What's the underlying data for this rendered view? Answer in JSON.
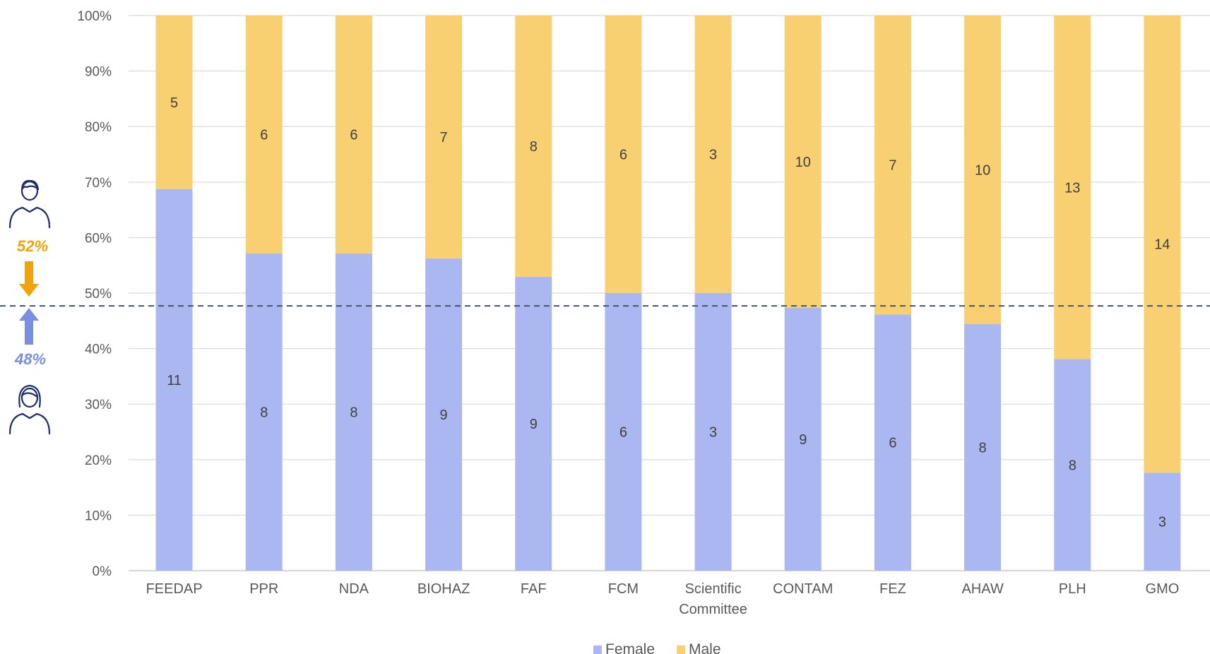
{
  "chart_data": {
    "type": "bar",
    "stacked": "percent",
    "categories": [
      "FEEDAP",
      "PPR",
      "NDA",
      "BIOHAZ",
      "FAF",
      "FCM",
      "Scientific Committee",
      "CONTAM",
      "FEZ",
      "AHAW",
      "PLH",
      "GMO"
    ],
    "category_lines": [
      [
        "FEEDAP"
      ],
      [
        "PPR"
      ],
      [
        "NDA"
      ],
      [
        "BIOHAZ"
      ],
      [
        "FAF"
      ],
      [
        "FCM"
      ],
      [
        "Scientific",
        "Committee"
      ],
      [
        "CONTAM"
      ],
      [
        "FEZ"
      ],
      [
        "AHAW"
      ],
      [
        "PLH"
      ],
      [
        "GMO"
      ]
    ],
    "series": [
      {
        "name": "Female",
        "values": [
          11,
          8,
          8,
          9,
          9,
          6,
          3,
          9,
          6,
          8,
          8,
          3
        ],
        "color": "#aab7f0"
      },
      {
        "name": "Male",
        "values": [
          5,
          6,
          6,
          7,
          8,
          6,
          3,
          10,
          7,
          10,
          13,
          14
        ],
        "color": "#f9d071"
      }
    ],
    "y_ticks": [
      "0%",
      "10%",
      "20%",
      "30%",
      "40%",
      "50%",
      "60%",
      "70%",
      "80%",
      "90%",
      "100%"
    ],
    "ylim": [
      0,
      100
    ],
    "reference_line": {
      "value": 47.7,
      "style": "dashed",
      "color": "#44546a"
    },
    "legend_position": "bottom",
    "grid": true
  },
  "side_annotation": {
    "male_pct": "52%",
    "female_pct": "48%",
    "male_color": "#f0a30a",
    "female_color": "#7b8fe0",
    "icon_color": "#1f2d6b",
    "male_icon": "man-icon",
    "female_icon": "woman-icon"
  }
}
